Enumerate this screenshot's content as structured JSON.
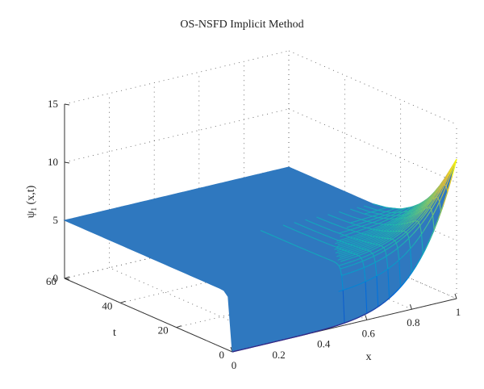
{
  "chart_data": {
    "type": "surface",
    "title": "OS-NSFD Implicit Method",
    "xlabel": "x",
    "ylabel": "t",
    "zlabel": "ψ₁ (x,t)",
    "xlim": [
      0,
      1
    ],
    "ylim": [
      0,
      60
    ],
    "zlim": [
      0,
      15
    ],
    "x_ticks": [
      "0",
      "0.2",
      "0.4",
      "0.6",
      "0.8",
      "1"
    ],
    "y_ticks": [
      "0",
      "20",
      "40",
      "60"
    ],
    "z_ticks": [
      "0",
      "5",
      "10",
      "15"
    ],
    "grid": true,
    "colormap": "parula",
    "plateau_color": "#2f78bf",
    "plateau_value": 5,
    "boundary_x1_by_t": {
      "t": [
        0,
        2,
        4,
        6,
        8,
        10,
        13,
        16,
        20,
        25,
        30
      ],
      "z": [
        12,
        11,
        10,
        9.1,
        8.3,
        7.6,
        6.8,
        6.2,
        5.6,
        5.2,
        5
      ]
    },
    "profile_exponent": 6
  }
}
